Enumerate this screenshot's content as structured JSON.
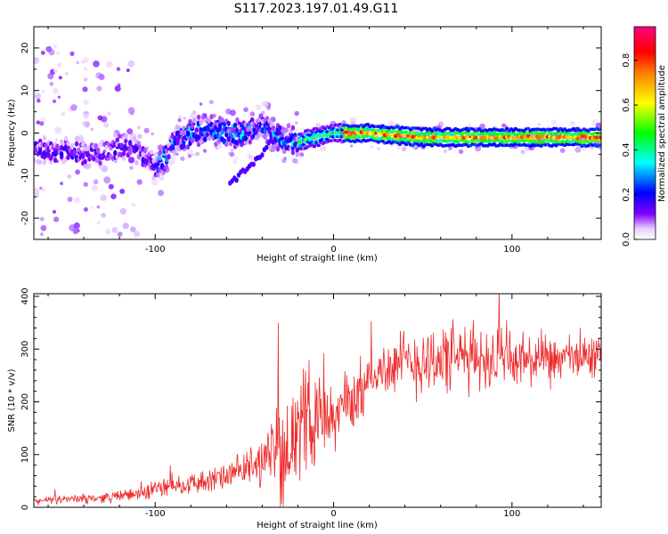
{
  "title": "S117.2023.197.01.49.G11",
  "chart_data": [
    {
      "type": "heatmap",
      "xlabel": "Height of straight line (km)",
      "ylabel": "Frequency (Hz)",
      "xlim": [
        -168,
        150
      ],
      "ylim": [
        -25,
        25
      ],
      "xticks": [
        -100,
        0,
        100
      ],
      "xtick_labels": [
        "-100",
        "0",
        "100"
      ],
      "yticks": [
        -20,
        -10,
        0,
        10,
        20
      ],
      "ytick_labels": [
        "-20",
        "-10",
        "0",
        "10",
        "20"
      ],
      "colorbar": {
        "label": "Normalized spectral amplitude",
        "range": [
          0,
          0.95
        ],
        "ticks": [
          0,
          0.2,
          0.4,
          0.6,
          0.8
        ],
        "tick_labels": [
          "0.0",
          "0.2",
          "0.4",
          "0.6",
          "0.8"
        ],
        "colormap": "rainbow (white-violet-blue-cyan-green-yellow-red-magenta)"
      },
      "ridge": {
        "x": [
          -165,
          -150,
          -140,
          -130,
          -120,
          -110,
          -100,
          -95,
          -90,
          -80,
          -70,
          -60,
          -50,
          -40,
          -30,
          -20,
          -10,
          0,
          10,
          20,
          50,
          100,
          150
        ],
        "y": [
          -4,
          -4,
          -5,
          -5,
          -3,
          -4,
          -8,
          -6,
          -2,
          0,
          1,
          0,
          0,
          2,
          -1,
          -2,
          -1,
          0,
          0,
          0,
          -1,
          -1,
          -1
        ]
      },
      "secondary_ridge": {
        "x": [
          -58,
          -50,
          -42,
          -35,
          -30
        ],
        "y": [
          -12,
          -9,
          -6,
          -2,
          0
        ]
      }
    },
    {
      "type": "line",
      "xlabel": "Height of straight line (km)",
      "ylabel": "SNR (10 * v/v)",
      "xlim": [
        -168,
        150
      ],
      "ylim": [
        0,
        405
      ],
      "xticks": [
        -100,
        0,
        100
      ],
      "xtick_labels": [
        "-100",
        "0",
        "100"
      ],
      "yticks": [
        0,
        100,
        200,
        300,
        400
      ],
      "ytick_labels": [
        "0",
        "100",
        "200",
        "300",
        "400"
      ],
      "color": "#ee2a2a",
      "series": [
        {
          "x": [
            -168,
            -150,
            -130,
            -110,
            -100,
            -90,
            -80,
            -70,
            -60,
            -50,
            -45,
            -40,
            -35,
            -30,
            -25,
            -20,
            -15,
            -10,
            -5,
            0,
            5,
            10,
            15,
            20,
            30,
            50,
            80,
            100,
            120,
            150
          ],
          "y": [
            12,
            15,
            18,
            25,
            35,
            42,
            45,
            50,
            58,
            70,
            80,
            90,
            100,
            110,
            125,
            140,
            165,
            185,
            175,
            160,
            195,
            200,
            220,
            245,
            265,
            280,
            285,
            280,
            275,
            290
          ],
          "noise_amplitude": [
            8,
            10,
            12,
            15,
            25,
            25,
            25,
            30,
            30,
            45,
            55,
            60,
            80,
            140,
            90,
            110,
            140,
            120,
            90,
            70,
            90,
            80,
            70,
            60,
            70,
            90,
            80,
            80,
            60,
            50
          ]
        }
      ]
    }
  ]
}
